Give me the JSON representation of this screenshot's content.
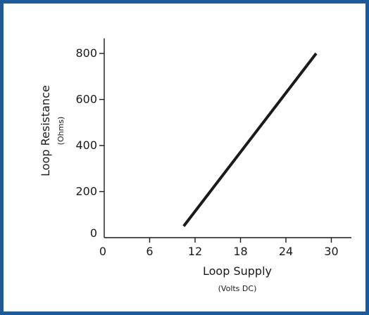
{
  "colors": {
    "frame_border": "#1d5a99",
    "axis": "#1a1a1a",
    "series_line": "#1a1a1a"
  },
  "chart_data": {
    "type": "line",
    "title": "",
    "xlabel": "Loop Supply",
    "xlabel_sub": "(Volts DC)",
    "ylabel": "Loop Resistance",
    "ylabel_sub": "(Ohms)",
    "xlim": [
      0,
      32
    ],
    "ylim": [
      0,
      850
    ],
    "x_ticks": [
      0,
      6,
      12,
      18,
      24,
      30
    ],
    "x_tick_labels": [
      "0",
      "6",
      "12",
      "18",
      "24",
      "30"
    ],
    "y_ticks": [
      0,
      200,
      400,
      600,
      800
    ],
    "y_tick_labels": [
      "0",
      "200",
      "400",
      "600",
      "800"
    ],
    "grid": false,
    "series": [
      {
        "x": [
          10.5,
          28
        ],
        "y": [
          50,
          800
        ]
      }
    ]
  }
}
